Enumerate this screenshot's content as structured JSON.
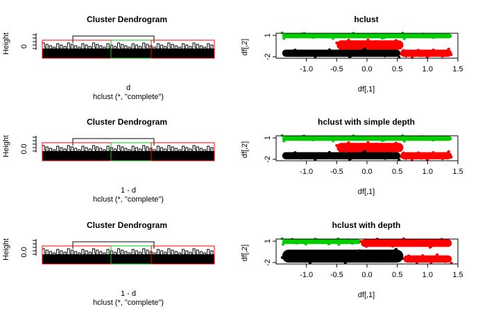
{
  "colors": {
    "green": "#00CD00",
    "red": "#FF0000",
    "black": "#000000",
    "box_red": "#FF0000",
    "box_green": "#00CD00"
  },
  "chart_data": [
    {
      "type": "dendrogram",
      "title": "Cluster Dendrogram",
      "ylabel": "Height",
      "xlabel": "d",
      "sub": "hclust (*, \"complete\")",
      "yticks": [
        "0"
      ],
      "highlight_boxes": [
        "red",
        "green",
        "red"
      ]
    },
    {
      "type": "scatter",
      "title": "hclust",
      "xlabel": "df[,1]",
      "ylabel": "df[,2]",
      "xticks": [
        "-1.0",
        "-0.5",
        "0.0",
        "0.5",
        "1.0",
        "1.5"
      ],
      "yticks": [
        "-2",
        "1"
      ],
      "xlim": [
        -1.5,
        1.5
      ],
      "ylim": [
        -2.2,
        1.3
      ],
      "clusters": [
        {
          "color": "green",
          "shape": "band",
          "x": [
            -1.4,
            1.4
          ],
          "y": [
            0.6,
            1.25
          ]
        },
        {
          "color": "red",
          "shape": "band",
          "x": [
            -0.5,
            0.6
          ],
          "y": [
            -1.0,
            0.3
          ]
        },
        {
          "color": "red",
          "shape": "band",
          "x": [
            0.55,
            1.4
          ],
          "y": [
            -2.0,
            -1.0
          ]
        },
        {
          "color": "black",
          "shape": "band",
          "x": [
            -1.4,
            0.55
          ],
          "y": [
            -2.0,
            -1.0
          ]
        }
      ]
    },
    {
      "type": "dendrogram",
      "title": "Cluster Dendrogram",
      "ylabel": "Height",
      "xlabel": "1 - d",
      "sub": "hclust (*, \"complete\")",
      "yticks": [
        "0.0"
      ],
      "highlight_boxes": [
        "red",
        "green",
        "red"
      ]
    },
    {
      "type": "scatter",
      "title": "hclust with simple depth",
      "xlabel": "df[,1]",
      "ylabel": "df[,2]",
      "xticks": [
        "-1.0",
        "-0.5",
        "0.0",
        "0.5",
        "1.0",
        "1.5"
      ],
      "yticks": [
        "-2",
        "1"
      ],
      "xlim": [
        -1.5,
        1.5
      ],
      "ylim": [
        -2.2,
        1.3
      ],
      "clusters": [
        {
          "color": "green",
          "shape": "band",
          "x": [
            -1.4,
            1.4
          ],
          "y": [
            0.6,
            1.25
          ]
        },
        {
          "color": "red",
          "shape": "band",
          "x": [
            -0.5,
            0.6
          ],
          "y": [
            -1.0,
            0.3
          ]
        },
        {
          "color": "red",
          "shape": "band",
          "x": [
            0.55,
            1.4
          ],
          "y": [
            -2.0,
            -1.0
          ]
        },
        {
          "color": "black",
          "shape": "band",
          "x": [
            -1.4,
            0.55
          ],
          "y": [
            -2.0,
            -1.0
          ]
        }
      ]
    },
    {
      "type": "dendrogram",
      "title": "Cluster Dendrogram",
      "ylabel": "Height",
      "xlabel": "1 - d",
      "sub": "hclust (*, \"complete\")",
      "yticks": [
        "0.0"
      ],
      "highlight_boxes": [
        "red",
        "green",
        "red"
      ]
    },
    {
      "type": "scatter",
      "title": "hclust with depth",
      "xlabel": "df[,1]",
      "ylabel": "df[,2]",
      "xticks": [
        "-1.0",
        "-0.5",
        "0.0",
        "0.5",
        "1.0",
        "1.5"
      ],
      "yticks": [
        "-2",
        "1"
      ],
      "xlim": [
        -1.5,
        1.5
      ],
      "ylim": [
        -2.2,
        1.3
      ],
      "clusters": [
        {
          "color": "green",
          "shape": "band",
          "x": [
            -1.4,
            -0.1
          ],
          "y": [
            0.6,
            1.25
          ]
        },
        {
          "color": "red",
          "shape": "band",
          "x": [
            -0.1,
            1.4
          ],
          "y": [
            0.2,
            1.25
          ]
        },
        {
          "color": "black",
          "shape": "band",
          "x": [
            -1.4,
            0.6
          ],
          "y": [
            -2.0,
            -0.2
          ]
        },
        {
          "color": "red",
          "shape": "band",
          "x": [
            0.6,
            1.4
          ],
          "y": [
            -2.0,
            -1.0
          ]
        }
      ]
    }
  ]
}
